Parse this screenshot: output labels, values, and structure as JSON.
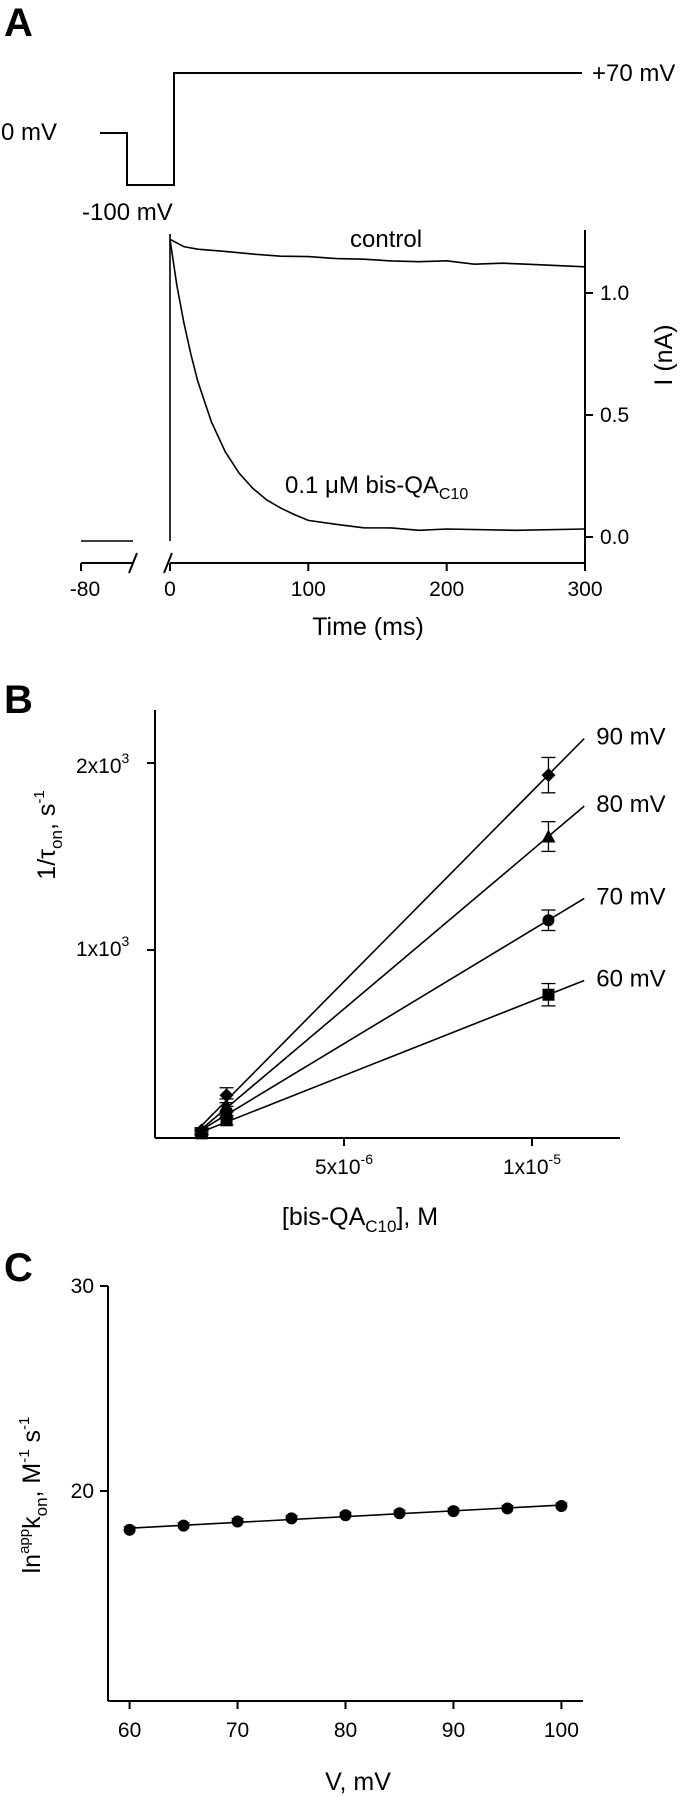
{
  "chart_data": [
    {
      "panel": "A",
      "type": "line",
      "protocol": {
        "labels": [
          "0 mV",
          "-100 mV",
          "+70 mV"
        ]
      },
      "xlabel": "Time (ms)",
      "ylabel": "I (nA)",
      "x_ticks_pre": [
        "-80"
      ],
      "x_ticks": [
        "0",
        "100",
        "200",
        "300"
      ],
      "y_ticks": [
        "0.0",
        "0.5",
        "1.0"
      ],
      "xlim": [
        0,
        300
      ],
      "ylim": [
        -0.1,
        1.3
      ],
      "series": [
        {
          "name": "control",
          "x": [
            0,
            10,
            20,
            40,
            60,
            80,
            100,
            120,
            140,
            160,
            180,
            200,
            220,
            240,
            260,
            280,
            300
          ],
          "y": [
            1.22,
            1.19,
            1.18,
            1.17,
            1.16,
            1.15,
            1.15,
            1.14,
            1.14,
            1.13,
            1.13,
            1.13,
            1.12,
            1.12,
            1.12,
            1.11,
            1.11
          ]
        },
        {
          "name": "0.1 μM bis-QA_C10",
          "label_main": "0.1 μM bis-QA",
          "label_sub": "C10",
          "x": [
            0,
            5,
            10,
            15,
            20,
            30,
            40,
            50,
            60,
            70,
            80,
            90,
            100,
            120,
            140,
            160,
            180,
            200,
            250,
            300
          ],
          "y": [
            1.22,
            1.03,
            0.88,
            0.75,
            0.64,
            0.47,
            0.35,
            0.26,
            0.2,
            0.15,
            0.12,
            0.09,
            0.07,
            0.05,
            0.04,
            0.035,
            0.03,
            0.03,
            0.03,
            0.03
          ]
        }
      ]
    },
    {
      "panel": "B",
      "type": "scatter",
      "xlabel_main": "[bis-QA",
      "xlabel_sub": "C10",
      "xlabel_end": "], M",
      "ylabel_main": "1/τ",
      "ylabel_sub": "on",
      "ylabel_end": ", s",
      "ylabel_sup": "-1",
      "x_ticks": [
        "5x10",
        "1x10"
      ],
      "x_tick_exps": [
        "-6",
        "-5"
      ],
      "y_ticks": [
        "1x10",
        "2x10"
      ],
      "y_tick_exps": [
        "3",
        "3"
      ],
      "xlim": [
        -1e-06,
        1.2e-05
      ],
      "ylim": [
        0,
        2300
      ],
      "x": [
        3e-07,
        1e-06,
        1e-05
      ],
      "series": [
        {
          "name": "90 mV",
          "marker": "diamond",
          "y": [
            40,
            230,
            1950
          ],
          "err": [
            15,
            40,
            95
          ]
        },
        {
          "name": "80 mV",
          "marker": "triangle",
          "y": [
            35,
            175,
            1620
          ],
          "err": [
            12,
            35,
            80
          ]
        },
        {
          "name": "70 mV",
          "marker": "circle",
          "y": [
            30,
            140,
            1170
          ],
          "err": [
            10,
            30,
            55
          ]
        },
        {
          "name": "60 mV",
          "marker": "square",
          "y": [
            25,
            95,
            770
          ],
          "err": [
            10,
            25,
            60
          ]
        }
      ]
    },
    {
      "panel": "C",
      "type": "scatter",
      "xlabel": "V, mV",
      "ylabel_main": "ln",
      "ylabel_sup1": "app",
      "ylabel_k": "k",
      "ylabel_sub": "on",
      "ylabel_end1": ", M",
      "ylabel_sup2": "-1",
      "ylabel_end2": " s",
      "ylabel_sup3": "-1",
      "x_ticks": [
        "60",
        "70",
        "80",
        "90",
        "100"
      ],
      "y_ticks": [
        "20",
        "30"
      ],
      "xlim": [
        58,
        102
      ],
      "ylim": [
        10,
        30
      ],
      "x": [
        60,
        65,
        70,
        75,
        80,
        85,
        90,
        95,
        100
      ],
      "y": [
        18.25,
        18.45,
        18.65,
        18.8,
        18.95,
        19.05,
        19.15,
        19.28,
        19.4
      ]
    }
  ]
}
